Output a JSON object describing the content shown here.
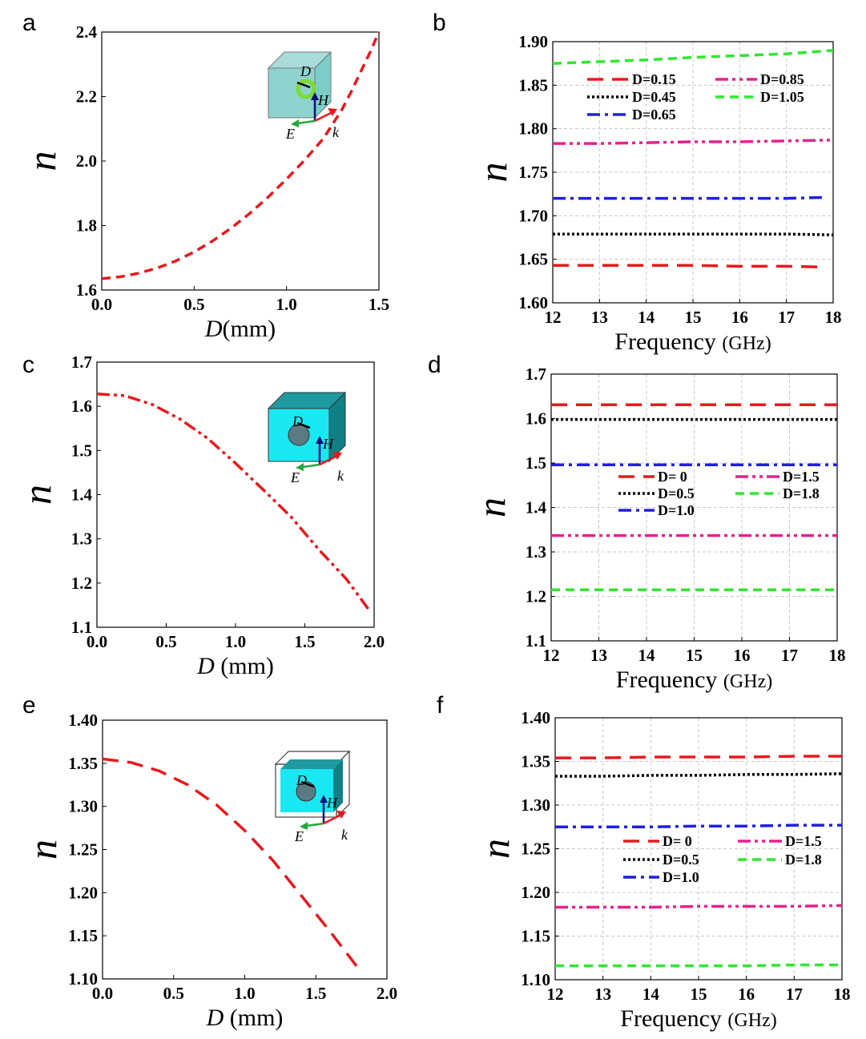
{
  "panels": [
    {
      "label": "a",
      "insetVariant": "ring",
      "insetLabels": [
        "D",
        "H",
        "E",
        "k"
      ],
      "chart_data": {
        "type": "line",
        "xlabel_italic": "D",
        "xlabel": "(mm)",
        "ylabel": "n",
        "xlim": [
          0,
          1.5
        ],
        "ylim": [
          1.6,
          2.4
        ],
        "xticks": [
          "0.0",
          "0.5",
          "1.0",
          "1.5"
        ],
        "xtickValues": [
          0,
          0.5,
          1,
          1.5
        ],
        "yticks": [
          "1.6",
          "1.8",
          "2.0",
          "2.2",
          "2.4"
        ],
        "ytickValues": [
          1.6,
          1.8,
          2.0,
          2.2,
          2.4
        ],
        "grid": false,
        "series": [
          {
            "color": "#e8191c",
            "dash": "dash",
            "x": [
              0,
              0.1,
              0.2,
              0.3,
              0.4,
              0.5,
              0.6,
              0.7,
              0.8,
              0.9,
              1.0,
              1.1,
              1.2,
              1.3,
              1.35,
              1.4,
              1.45,
              1.5
            ],
            "y": [
              1.635,
              1.641,
              1.652,
              1.668,
              1.69,
              1.718,
              1.752,
              1.792,
              1.837,
              1.888,
              1.944,
              2.004,
              2.07,
              2.16,
              2.215,
              2.275,
              2.335,
              2.4
            ]
          }
        ]
      }
    },
    {
      "label": "b",
      "legendPosition": "top-right",
      "chart_data": {
        "type": "line",
        "xlabel": "Frequency",
        "xlabel_unit": "(GHz)",
        "ylabel": "n",
        "xlim": [
          12,
          18
        ],
        "ylim": [
          1.6,
          1.9
        ],
        "xticks": [
          "12",
          "13",
          "14",
          "15",
          "16",
          "17",
          "18"
        ],
        "xtickValues": [
          12,
          13,
          14,
          15,
          16,
          17,
          18
        ],
        "yticks": [
          "1.60",
          "1.65",
          "1.70",
          "1.75",
          "1.80",
          "1.85",
          "1.90"
        ],
        "ytickValues": [
          1.6,
          1.65,
          1.7,
          1.75,
          1.8,
          1.85,
          1.9
        ],
        "grid": true,
        "series": [
          {
            "name": "D=0.15",
            "color": "#e8191c",
            "dash": "longdash",
            "x": [
              12,
              13,
              14,
              15,
              16,
              17,
              17.8
            ],
            "y": [
              1.643,
              1.643,
              1.643,
              1.643,
              1.642,
              1.642,
              1.641
            ]
          },
          {
            "name": "D=0.45",
            "color": "#000000",
            "dash": "dot",
            "x": [
              12,
              13,
              14,
              15,
              16,
              17,
              18
            ],
            "y": [
              1.679,
              1.679,
              1.679,
              1.679,
              1.679,
              1.679,
              1.678
            ]
          },
          {
            "name": "D=0.65",
            "color": "#1f1fe0",
            "dash": "dashdot",
            "x": [
              12,
              13,
              14,
              15,
              16,
              17,
              17.8
            ],
            "y": [
              1.72,
              1.72,
              1.72,
              1.72,
              1.72,
              1.72,
              1.721
            ]
          },
          {
            "name": "D=0.85",
            "color": "#e8208c",
            "dash": "dashdotdot",
            "x": [
              12,
              13,
              14,
              15,
              16,
              17,
              18
            ],
            "y": [
              1.783,
              1.783,
              1.784,
              1.785,
              1.785,
              1.786,
              1.787
            ]
          },
          {
            "name": "D=1.05",
            "color": "#2ee82e",
            "dash": "dash",
            "x": [
              12,
              13,
              14,
              15,
              16,
              17,
              18
            ],
            "y": [
              1.875,
              1.877,
              1.879,
              1.882,
              1.884,
              1.886,
              1.89
            ]
          }
        ]
      }
    },
    {
      "label": "c",
      "insetVariant": "hole",
      "insetLabels": [
        "D",
        "H",
        "E",
        "k"
      ],
      "chart_data": {
        "type": "line",
        "xlabel_italic": "D",
        "xlabel": " (mm)",
        "ylabel": "n",
        "xlim": [
          0,
          2.0
        ],
        "ylim": [
          1.1,
          1.7
        ],
        "xticks": [
          "0.0",
          "0.5",
          "1.0",
          "1.5",
          "2.0"
        ],
        "xtickValues": [
          0,
          0.5,
          1,
          1.5,
          2.0
        ],
        "yticks": [
          "1.1",
          "1.2",
          "1.3",
          "1.4",
          "1.5",
          "1.6",
          "1.7"
        ],
        "ytickValues": [
          1.1,
          1.2,
          1.3,
          1.4,
          1.5,
          1.6,
          1.7
        ],
        "grid": false,
        "series": [
          {
            "color": "#e8191c",
            "dash": "dashdotdot",
            "x": [
              0,
              0.2,
              0.4,
              0.6,
              0.8,
              1.0,
              1.2,
              1.4,
              1.6,
              1.8,
              1.97
            ],
            "y": [
              1.628,
              1.624,
              1.604,
              1.571,
              1.527,
              1.471,
              1.411,
              1.35,
              1.276,
              1.209,
              1.136
            ]
          }
        ]
      }
    },
    {
      "label": "d",
      "legendPosition": "center-right",
      "chart_data": {
        "type": "line",
        "xlabel": "Frequency",
        "xlabel_unit": "(GHz)",
        "ylabel": "n",
        "xlim": [
          12,
          18
        ],
        "ylim": [
          1.1,
          1.7
        ],
        "xticks": [
          "12",
          "13",
          "14",
          "15",
          "16",
          "17",
          "18"
        ],
        "xtickValues": [
          12,
          13,
          14,
          15,
          16,
          17,
          18
        ],
        "yticks": [
          "1.1",
          "1.2",
          "1.3",
          "1.4",
          "1.5",
          "1.6",
          "1.7"
        ],
        "ytickValues": [
          1.1,
          1.2,
          1.3,
          1.4,
          1.5,
          1.6,
          1.7
        ],
        "grid": true,
        "series": [
          {
            "name": "D=  0",
            "color": "#e8191c",
            "dash": "longdash",
            "x": [
              12,
              18
            ],
            "y": [
              1.631,
              1.631
            ]
          },
          {
            "name": "D=0.5",
            "color": "#000000",
            "dash": "dot",
            "x": [
              12,
              18
            ],
            "y": [
              1.598,
              1.598
            ]
          },
          {
            "name": "D=1.0",
            "color": "#1f1fe0",
            "dash": "dashdot",
            "x": [
              12,
              18
            ],
            "y": [
              1.496,
              1.496
            ]
          },
          {
            "name": "D=1.5",
            "color": "#e8208c",
            "dash": "dashdotdot",
            "x": [
              12,
              18
            ],
            "y": [
              1.337,
              1.337
            ]
          },
          {
            "name": "D=1.8",
            "color": "#2ee82e",
            "dash": "dash",
            "x": [
              12,
              18
            ],
            "y": [
              1.215,
              1.215
            ]
          }
        ]
      }
    },
    {
      "label": "e",
      "insetVariant": "shell",
      "insetLabels": [
        "D",
        "H",
        "E",
        "k"
      ],
      "chart_data": {
        "type": "line",
        "xlabel_italic": "D",
        "xlabel": " (mm)",
        "ylabel": "n",
        "xlim": [
          0,
          2.0
        ],
        "ylim": [
          1.1,
          1.4
        ],
        "xticks": [
          "0.0",
          "0.5",
          "1.0",
          "1.5",
          "2.0"
        ],
        "xtickValues": [
          0,
          0.5,
          1,
          1.5,
          2.0
        ],
        "yticks": [
          "1.10",
          "1.15",
          "1.20",
          "1.25",
          "1.30",
          "1.35",
          "1.40"
        ],
        "ytickValues": [
          1.1,
          1.15,
          1.2,
          1.25,
          1.3,
          1.35,
          1.4
        ],
        "grid": false,
        "series": [
          {
            "color": "#e8191c",
            "dash": "longdash",
            "x": [
              0,
              0.2,
              0.4,
              0.6,
              0.8,
              1.0,
              1.2,
              1.4,
              1.6,
              1.8
            ],
            "y": [
              1.355,
              1.351,
              1.341,
              1.325,
              1.302,
              1.272,
              1.237,
              1.196,
              1.155,
              1.112
            ]
          }
        ]
      }
    },
    {
      "label": "f",
      "legendPosition": "center-right",
      "chart_data": {
        "type": "line",
        "xlabel": "Frequency",
        "xlabel_unit": "(GHz)",
        "ylabel": "n",
        "xlim": [
          12,
          18
        ],
        "ylim": [
          1.1,
          1.4
        ],
        "xticks": [
          "12",
          "13",
          "14",
          "15",
          "16",
          "17",
          "18"
        ],
        "xtickValues": [
          12,
          13,
          14,
          15,
          16,
          17,
          18
        ],
        "yticks": [
          "1.10",
          "1.15",
          "1.20",
          "1.25",
          "1.30",
          "1.35",
          "1.40"
        ],
        "ytickValues": [
          1.1,
          1.15,
          1.2,
          1.25,
          1.3,
          1.35,
          1.4
        ],
        "grid": true,
        "series": [
          {
            "name": "D=  0",
            "color": "#e8191c",
            "dash": "longdash",
            "x": [
              12,
              13,
              14,
              15,
              16,
              17,
              18
            ],
            "y": [
              1.354,
              1.354,
              1.355,
              1.355,
              1.355,
              1.356,
              1.356
            ]
          },
          {
            "name": "D=0.5",
            "color": "#000000",
            "dash": "dot",
            "x": [
              12,
              13,
              14,
              15,
              16,
              17,
              18
            ],
            "y": [
              1.333,
              1.333,
              1.334,
              1.334,
              1.335,
              1.335,
              1.336
            ]
          },
          {
            "name": "D=1.0",
            "color": "#1f1fe0",
            "dash": "dashdot",
            "x": [
              12,
              13,
              14,
              15,
              16,
              17,
              18
            ],
            "y": [
              1.275,
              1.275,
              1.275,
              1.276,
              1.276,
              1.277,
              1.277
            ]
          },
          {
            "name": "D=1.5",
            "color": "#e8208c",
            "dash": "dashdotdot",
            "x": [
              12,
              13,
              14,
              15,
              16,
              17,
              18
            ],
            "y": [
              1.183,
              1.183,
              1.183,
              1.184,
              1.184,
              1.184,
              1.185
            ]
          },
          {
            "name": "D=1.8",
            "color": "#2ee82e",
            "dash": "dash",
            "x": [
              12,
              13,
              14,
              15,
              16,
              17,
              18
            ],
            "y": [
              1.116,
              1.116,
              1.116,
              1.116,
              1.116,
              1.117,
              1.117
            ]
          }
        ]
      }
    }
  ]
}
